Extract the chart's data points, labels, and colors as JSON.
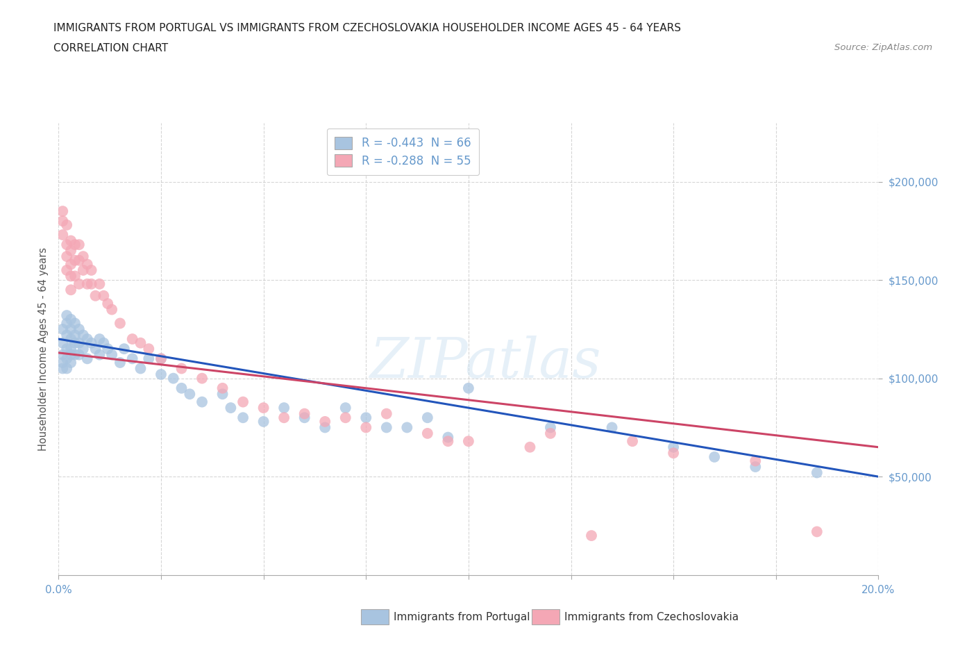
{
  "title_line1": "IMMIGRANTS FROM PORTUGAL VS IMMIGRANTS FROM CZECHOSLOVAKIA HOUSEHOLDER INCOME AGES 45 - 64 YEARS",
  "title_line2": "CORRELATION CHART",
  "source_text": "Source: ZipAtlas.com",
  "ylabel": "Householder Income Ages 45 - 64 years",
  "xlim": [
    0.0,
    0.2
  ],
  "ylim": [
    0,
    230000
  ],
  "yticks": [
    50000,
    100000,
    150000,
    200000
  ],
  "ytick_labels": [
    "$50,000",
    "$100,000",
    "$150,000",
    "$200,000"
  ],
  "xticks": [
    0.0,
    0.025,
    0.05,
    0.075,
    0.1,
    0.125,
    0.15,
    0.175,
    0.2
  ],
  "xtick_labels": [
    "0.0%",
    "",
    "",
    "",
    "",
    "",
    "",
    "",
    "20.0%"
  ],
  "legend_entries": [
    {
      "label": "R = -0.443  N = 66",
      "color": "#a8c4e0"
    },
    {
      "label": "R = -0.288  N = 55",
      "color": "#f4a7b5"
    }
  ],
  "legend_bottom_entries": [
    {
      "label": "Immigrants from Portugal",
      "color": "#a8c4e0"
    },
    {
      "label": "Immigrants from Czechoslovakia",
      "color": "#f4a7b5"
    }
  ],
  "watermark": "ZIPatlas",
  "blue_color": "#a8c4e0",
  "pink_color": "#f4a7b5",
  "blue_line_color": "#2255bb",
  "pink_line_color": "#cc4466",
  "background_color": "#ffffff",
  "grid_color": "#cccccc",
  "title_color": "#333333",
  "axis_color": "#6699cc",
  "blue_line_x": [
    0.0,
    0.2
  ],
  "blue_line_y": [
    120000,
    50000
  ],
  "pink_line_x": [
    0.0,
    0.2
  ],
  "pink_line_y": [
    113000,
    65000
  ],
  "portugal_x": [
    0.001,
    0.001,
    0.001,
    0.001,
    0.001,
    0.002,
    0.002,
    0.002,
    0.002,
    0.002,
    0.002,
    0.003,
    0.003,
    0.003,
    0.003,
    0.003,
    0.003,
    0.004,
    0.004,
    0.004,
    0.004,
    0.005,
    0.005,
    0.005,
    0.006,
    0.006,
    0.007,
    0.007,
    0.008,
    0.009,
    0.01,
    0.01,
    0.011,
    0.012,
    0.013,
    0.015,
    0.016,
    0.018,
    0.02,
    0.022,
    0.025,
    0.025,
    0.028,
    0.03,
    0.032,
    0.035,
    0.04,
    0.042,
    0.045,
    0.05,
    0.055,
    0.06,
    0.065,
    0.07,
    0.075,
    0.08,
    0.085,
    0.09,
    0.095,
    0.1,
    0.12,
    0.135,
    0.15,
    0.16,
    0.17,
    0.185
  ],
  "portugal_y": [
    125000,
    118000,
    112000,
    108000,
    105000,
    132000,
    128000,
    122000,
    115000,
    110000,
    105000,
    130000,
    125000,
    120000,
    115000,
    112000,
    108000,
    128000,
    122000,
    118000,
    112000,
    125000,
    118000,
    112000,
    122000,
    115000,
    120000,
    110000,
    118000,
    115000,
    120000,
    112000,
    118000,
    115000,
    112000,
    108000,
    115000,
    110000,
    105000,
    110000,
    110000,
    102000,
    100000,
    95000,
    92000,
    88000,
    92000,
    85000,
    80000,
    78000,
    85000,
    80000,
    75000,
    85000,
    80000,
    75000,
    75000,
    80000,
    70000,
    95000,
    75000,
    75000,
    65000,
    60000,
    55000,
    52000
  ],
  "czechoslovakia_x": [
    0.001,
    0.001,
    0.001,
    0.002,
    0.002,
    0.002,
    0.002,
    0.003,
    0.003,
    0.003,
    0.003,
    0.003,
    0.004,
    0.004,
    0.004,
    0.005,
    0.005,
    0.005,
    0.006,
    0.006,
    0.007,
    0.007,
    0.008,
    0.008,
    0.009,
    0.01,
    0.011,
    0.012,
    0.013,
    0.015,
    0.018,
    0.02,
    0.022,
    0.025,
    0.03,
    0.035,
    0.04,
    0.045,
    0.05,
    0.055,
    0.06,
    0.065,
    0.07,
    0.075,
    0.08,
    0.09,
    0.095,
    0.1,
    0.115,
    0.12,
    0.13,
    0.14,
    0.15,
    0.17,
    0.185
  ],
  "czechoslovakia_y": [
    185000,
    180000,
    173000,
    178000,
    168000,
    162000,
    155000,
    170000,
    165000,
    158000,
    152000,
    145000,
    168000,
    160000,
    152000,
    168000,
    160000,
    148000,
    162000,
    155000,
    158000,
    148000,
    155000,
    148000,
    142000,
    148000,
    142000,
    138000,
    135000,
    128000,
    120000,
    118000,
    115000,
    110000,
    105000,
    100000,
    95000,
    88000,
    85000,
    80000,
    82000,
    78000,
    80000,
    75000,
    82000,
    72000,
    68000,
    68000,
    65000,
    72000,
    20000,
    68000,
    62000,
    58000,
    22000
  ]
}
